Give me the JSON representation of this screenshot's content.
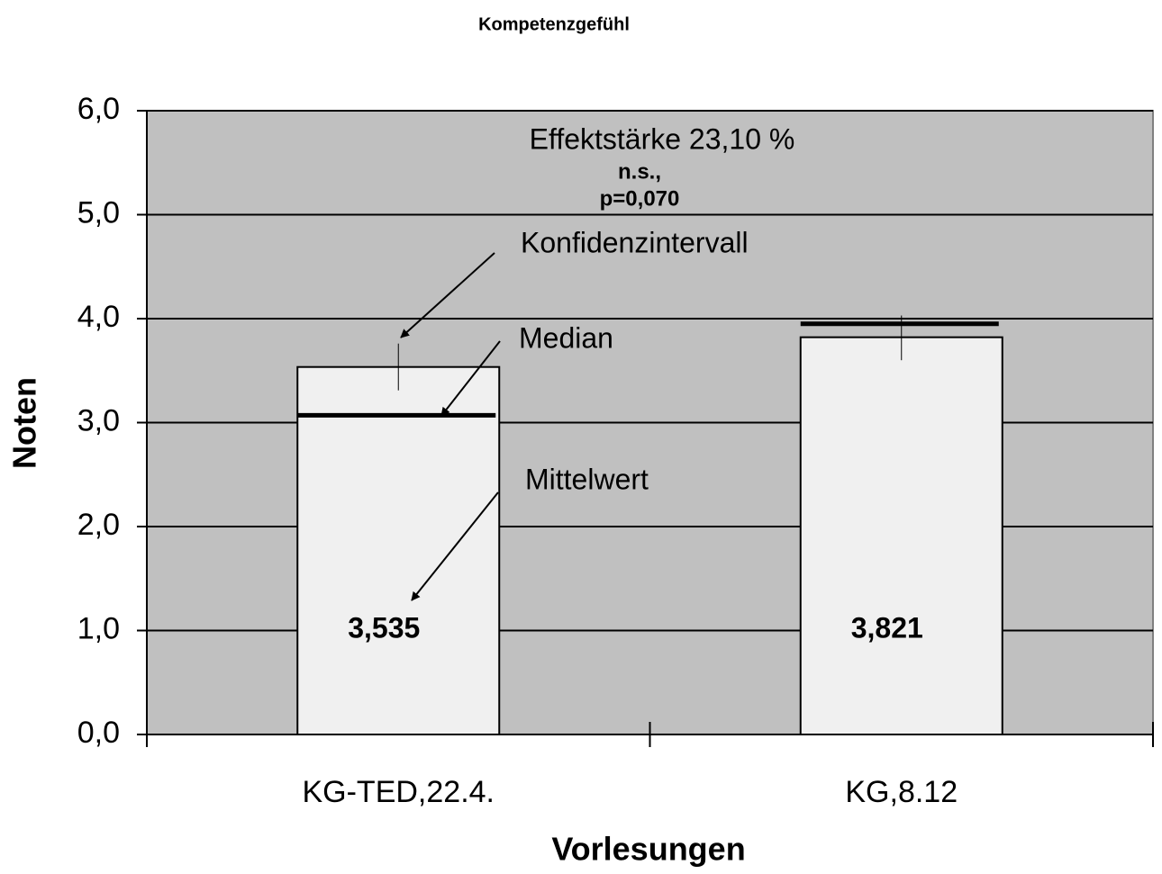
{
  "chart_data": {
    "type": "bar",
    "title": "Kompetenzgefühl",
    "xlabel": "Vorlesungen",
    "ylabel": "Noten",
    "categories": [
      "KG-TED,22.4.",
      "KG,8.12"
    ],
    "values": [
      3.535,
      3.821
    ],
    "value_labels": [
      "3,535",
      "3,821"
    ],
    "medians": [
      3.07,
      3.95
    ],
    "ci_low": [
      3.31,
      3.6
    ],
    "ci_high": [
      3.76,
      4.03
    ],
    "color": "#f0f0f0",
    "background": "#c0c0c0",
    "ylim": [
      0,
      6
    ],
    "yticks": [
      {
        "value": 0,
        "label": "0,0"
      },
      {
        "value": 1,
        "label": "1,0"
      },
      {
        "value": 2,
        "label": "2,0"
      },
      {
        "value": 3,
        "label": "3,0"
      },
      {
        "value": 4,
        "label": "4,0"
      },
      {
        "value": 5,
        "label": "5,0"
      },
      {
        "value": 6,
        "label": "6,0"
      }
    ],
    "grid": true,
    "annotations": [
      "Effektstärke 23,10 %",
      "n.s.,",
      "p=0,070",
      "Konfidenzintervall",
      "Median",
      "Mittelwert"
    ]
  }
}
